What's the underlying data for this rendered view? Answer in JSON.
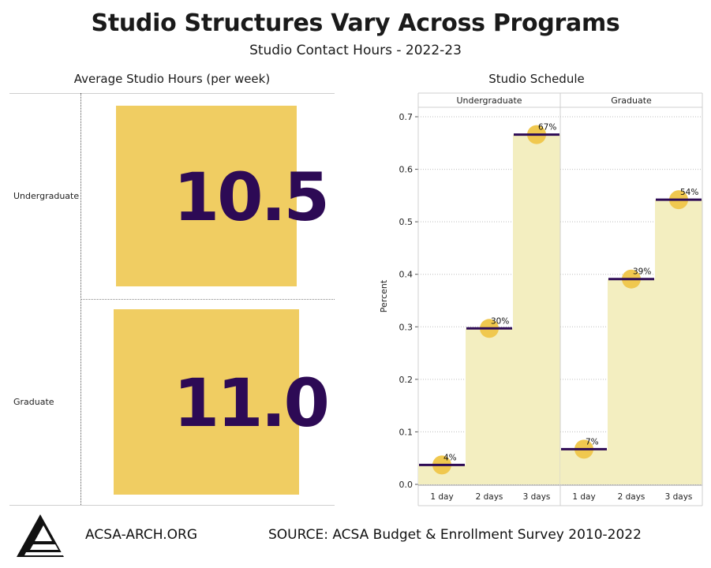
{
  "header": {
    "title": "Studio Structures Vary Across Programs",
    "subtitle": "Studio Contact Hours - 2022-23"
  },
  "footer": {
    "site": "ACSA-ARCH.ORG",
    "source": "SOURCE: ACSA Budget & Enrollment Survey 2010-2022",
    "logo_icon": "acsa-logo-icon"
  },
  "colors": {
    "gold": "#f0cd62",
    "pale_gold": "#f3eec0",
    "purple": "#2d0a55",
    "marker": "#f0c84f"
  },
  "chart_data": [
    {
      "type": "table",
      "title": "Average Studio Hours (per week)",
      "rows": [
        {
          "label": "Undergraduate",
          "value": "10.5"
        },
        {
          "label": "Graduate",
          "value": "11.0"
        }
      ]
    },
    {
      "type": "bar",
      "title": "Studio Schedule",
      "ylabel": "Percent",
      "ylim": [
        0,
        0.7
      ],
      "yticks": [
        0.0,
        0.1,
        0.2,
        0.3,
        0.4,
        0.5,
        0.6,
        0.7
      ],
      "ytick_labels": [
        "0.0",
        "0.1",
        "0.2",
        "0.3",
        "0.4",
        "0.5",
        "0.6",
        "0.7"
      ],
      "grid": true,
      "panels": [
        {
          "name": "Undergraduate",
          "categories": [
            "1 day",
            "2 days",
            "3 days"
          ],
          "values": [
            0.037,
            0.297,
            0.666
          ],
          "labels": [
            "4%",
            "30%",
            "67%"
          ]
        },
        {
          "name": "Graduate",
          "categories": [
            "1 day",
            "2 days",
            "3 days"
          ],
          "values": [
            0.067,
            0.391,
            0.542
          ],
          "labels": [
            "7%",
            "39%",
            "54%"
          ]
        }
      ]
    }
  ]
}
